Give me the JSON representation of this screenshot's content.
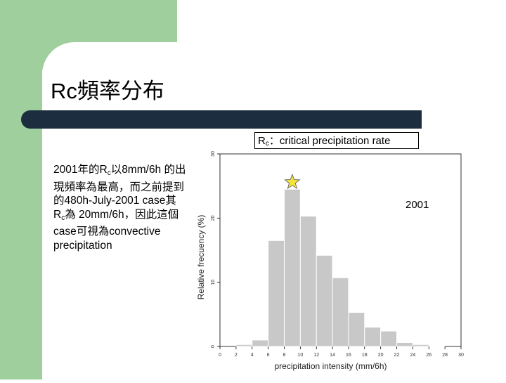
{
  "slide": {
    "title": "Rc頻率分布",
    "rc_label_main": "R",
    "rc_label_sub": "c",
    "rc_label_rest": "：critical precipitation rate",
    "description": [
      {
        "text": "2001年的R"
      },
      {
        "text": "c",
        "sub": true
      },
      {
        "text": "以8mm/6h 的出現頻率為最高，而之前提到的480h-July-2001 case其R"
      },
      {
        "text": "c",
        "sub": true
      },
      {
        "text": "為 20mm/6h，因此這個case可視為convective precipitation"
      }
    ],
    "colors": {
      "accent_green": "#9fcf9d",
      "title_bar": "#1b2d3f",
      "bar_fill": "#c8c8c8",
      "star_fill": "#f5e33c"
    }
  },
  "chart_data": {
    "type": "bar",
    "title": "",
    "annotation": "2001",
    "xlabel": "precipitation intensity (mm/6h)",
    "ylabel": "Relative frecuency (%)",
    "xlim": [
      0,
      30
    ],
    "ylim": [
      0,
      30
    ],
    "xticks": [
      0,
      2,
      4,
      6,
      8,
      10,
      12,
      14,
      16,
      18,
      20,
      22,
      24,
      26,
      28,
      30
    ],
    "yticks": [
      0,
      10,
      20,
      30
    ],
    "bin_width": 2,
    "bins_start": [
      2,
      4,
      6,
      8,
      10,
      12,
      14,
      16,
      18,
      20,
      22,
      24,
      26
    ],
    "values": [
      0.3,
      1.0,
      16.5,
      24.5,
      20.3,
      14.2,
      10.7,
      5.3,
      3.0,
      2.4,
      0.6,
      0.3,
      0.1
    ],
    "highlight_bin_start": 8,
    "highlight_marker": "star-icon",
    "grid": false,
    "legend": "none"
  }
}
